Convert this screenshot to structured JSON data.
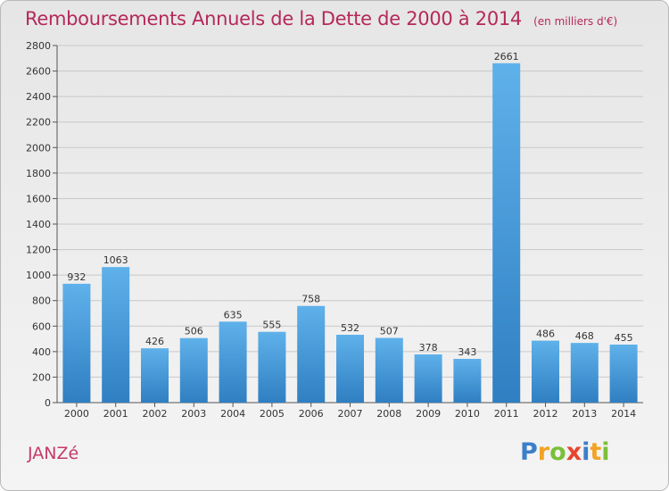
{
  "title": "Remboursements Annuels de la Dette de 2000 à 2014",
  "subtitle": "(en milliers d'€)",
  "commune": "JANZé",
  "logo": {
    "letters": [
      {
        "ch": "P",
        "color": "#3b7fc9"
      },
      {
        "ch": "r",
        "color": "#f2a324"
      },
      {
        "ch": "o",
        "color": "#7bbf3a"
      },
      {
        "ch": "x",
        "color": "#e8452e"
      },
      {
        "ch": "i",
        "color": "#3b7fc9"
      },
      {
        "ch": "t",
        "color": "#f2a324"
      },
      {
        "ch": "i",
        "color": "#7bbf3a"
      }
    ]
  },
  "colors": {
    "bar_top": "#5fb1ea",
    "bar_bottom": "#2f7fc2",
    "axis": "#555555",
    "grid": "#c8c8c8"
  },
  "chart_data": {
    "type": "bar",
    "title": "Remboursements Annuels de la Dette de 2000 à 2014",
    "subtitle": "(en milliers d'€)",
    "categories": [
      "2000",
      "2001",
      "2002",
      "2003",
      "2004",
      "2005",
      "2006",
      "2007",
      "2008",
      "2009",
      "2010",
      "2011",
      "2012",
      "2013",
      "2014"
    ],
    "values": [
      932,
      1063,
      426,
      506,
      635,
      555,
      758,
      532,
      507,
      378,
      343,
      2661,
      486,
      468,
      455
    ],
    "ylim": [
      0,
      2800
    ],
    "yticks": [
      0,
      200,
      400,
      600,
      800,
      1000,
      1200,
      1400,
      1600,
      1800,
      2000,
      2200,
      2400,
      2600,
      2800
    ],
    "grid": true,
    "data_labels": true
  }
}
